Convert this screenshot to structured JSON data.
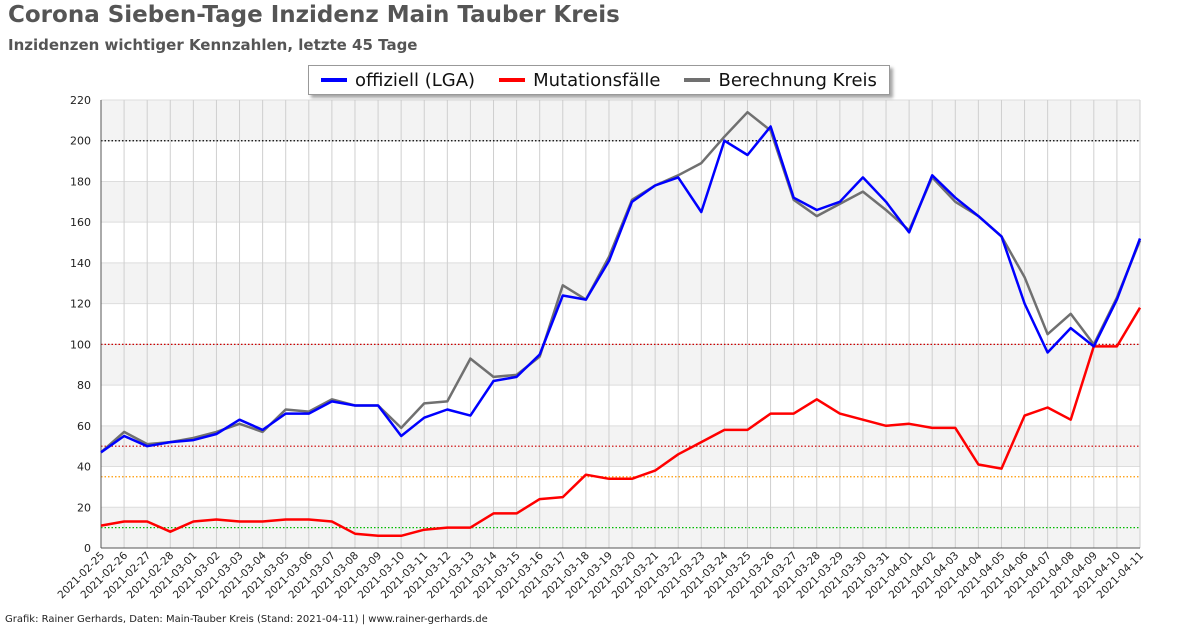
{
  "title": "Corona Sieben-Tage Inzidenz Main Tauber Kreis",
  "subtitle": "Inzidenzen wichtiger Kennzahlen, letzte 45 Tage",
  "footer": "Grafik: Rainer Gerhards, Daten: Main-Tauber Kreis (Stand: 2021-04-11) | www.rainer-gerhards.de",
  "chart_data": {
    "type": "line",
    "categories": [
      "2021-02-25",
      "2021-02-26",
      "2021-02-27",
      "2021-02-28",
      "2021-03-01",
      "2021-03-02",
      "2021-03-03",
      "2021-03-04",
      "2021-03-05",
      "2021-03-06",
      "2021-03-07",
      "2021-03-08",
      "2021-03-09",
      "2021-03-10",
      "2021-03-11",
      "2021-03-12",
      "2021-03-13",
      "2021-03-14",
      "2021-03-15",
      "2021-03-16",
      "2021-03-17",
      "2021-03-18",
      "2021-03-19",
      "2021-03-20",
      "2021-03-21",
      "2021-03-22",
      "2021-03-23",
      "2021-03-24",
      "2021-03-25",
      "2021-03-26",
      "2021-03-27",
      "2021-03-28",
      "2021-03-29",
      "2021-03-30",
      "2021-03-31",
      "2021-04-01",
      "2021-04-02",
      "2021-04-03",
      "2021-04-04",
      "2021-04-05",
      "2021-04-06",
      "2021-04-07",
      "2021-04-08",
      "2021-04-09",
      "2021-04-10",
      "2021-04-11"
    ],
    "series": [
      {
        "name": "offiziell (LGA)",
        "color": "#0000ff",
        "values": [
          47,
          55,
          50,
          52,
          53,
          56,
          63,
          58,
          66,
          66,
          72,
          70,
          70,
          55,
          64,
          68,
          65,
          82,
          84,
          95,
          124,
          122,
          141,
          170,
          178,
          182,
          165,
          200,
          193,
          207,
          172,
          166,
          170,
          182,
          170,
          155,
          183,
          172,
          163,
          153,
          120,
          96,
          108,
          99,
          122,
          152
        ]
      },
      {
        "name": "Mutationsfälle",
        "color": "#ff0000",
        "values": [
          11,
          13,
          13,
          8,
          13,
          14,
          13,
          13,
          14,
          14,
          13,
          7,
          6,
          6,
          9,
          10,
          10,
          17,
          17,
          24,
          25,
          36,
          34,
          34,
          38,
          46,
          52,
          58,
          58,
          66,
          66,
          73,
          66,
          63,
          60,
          61,
          59,
          59,
          41,
          39,
          65,
          69,
          63,
          99,
          99,
          118
        ]
      },
      {
        "name": "Berechnung Kreis",
        "color": "#707070",
        "values": [
          47,
          57,
          51,
          52,
          54,
          57,
          61,
          57,
          68,
          67,
          73,
          70,
          70,
          59,
          71,
          72,
          93,
          84,
          85,
          94,
          129,
          122,
          143,
          171,
          178,
          183,
          189,
          202,
          214,
          205,
          171,
          163,
          169,
          175,
          166,
          156,
          182,
          170,
          163,
          153,
          133,
          105,
          115,
          100,
          123,
          151
        ]
      }
    ],
    "reference_lines": [
      {
        "value": 200,
        "color": "#000000"
      },
      {
        "value": 100,
        "color": "#cc0000"
      },
      {
        "value": 50,
        "color": "#cc0000"
      },
      {
        "value": 35,
        "color": "#ff9900"
      },
      {
        "value": 10,
        "color": "#00bb00"
      }
    ],
    "ylim": [
      0,
      220
    ],
    "yticks": [
      0,
      20,
      40,
      60,
      80,
      100,
      120,
      140,
      160,
      180,
      200,
      220
    ],
    "grid": true,
    "legend_position": "top-center"
  }
}
